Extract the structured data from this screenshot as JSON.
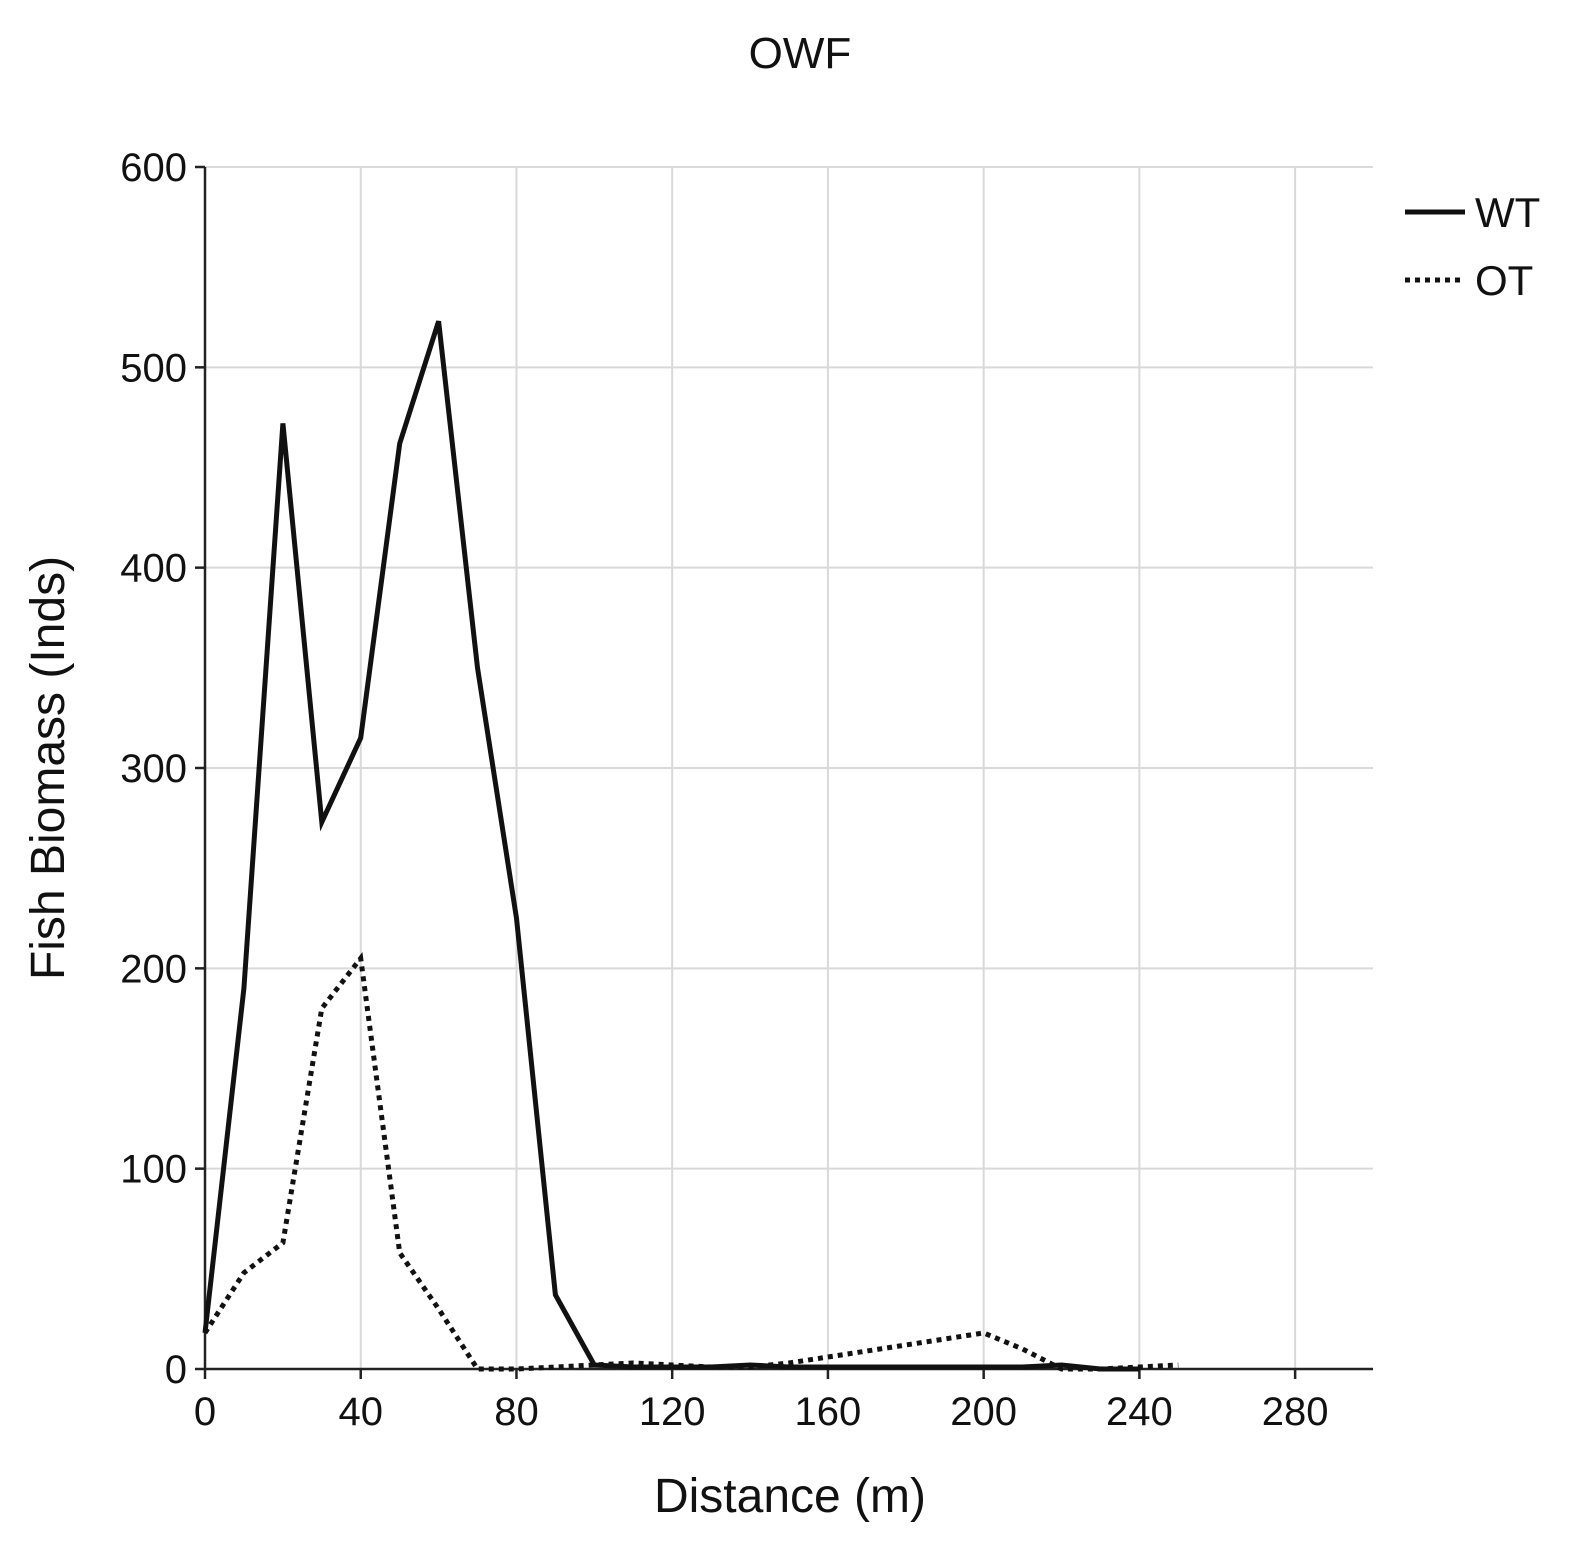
{
  "chart_data": {
    "type": "line",
    "title": "OWF",
    "xlabel": "Distance (m)",
    "ylabel": "Fish Biomass (Inds)",
    "xlim": [
      0,
      300
    ],
    "ylim": [
      0,
      600
    ],
    "xticks": [
      0,
      40,
      80,
      120,
      160,
      200,
      240,
      280
    ],
    "yticks": [
      0,
      100,
      200,
      300,
      400,
      500,
      600
    ],
    "grid": true,
    "legend_position": "top-right",
    "series": [
      {
        "name": "WT",
        "style": "solid",
        "color": "#111111",
        "x": [
          0,
          10,
          20,
          30,
          40,
          50,
          60,
          70,
          80,
          90,
          100,
          110,
          120,
          130,
          140,
          150,
          160,
          170,
          180,
          190,
          200,
          210,
          220,
          230,
          240
        ],
        "y": [
          18,
          190,
          472,
          273,
          315,
          462,
          523,
          350,
          225,
          37,
          2,
          1,
          1,
          1,
          2,
          1,
          1,
          1,
          1,
          1,
          1,
          1,
          2,
          0,
          0
        ]
      },
      {
        "name": "OT",
        "style": "dotted",
        "color": "#111111",
        "x": [
          0,
          10,
          20,
          30,
          40,
          50,
          60,
          70,
          80,
          90,
          100,
          110,
          120,
          130,
          140,
          150,
          160,
          170,
          180,
          190,
          200,
          210,
          220,
          230,
          240,
          250
        ],
        "y": [
          18,
          48,
          63,
          180,
          205,
          58,
          30,
          0,
          0,
          1,
          2,
          3,
          2,
          1,
          1,
          3,
          6,
          9,
          12,
          15,
          18,
          10,
          0,
          0,
          1,
          2
        ]
      }
    ]
  }
}
